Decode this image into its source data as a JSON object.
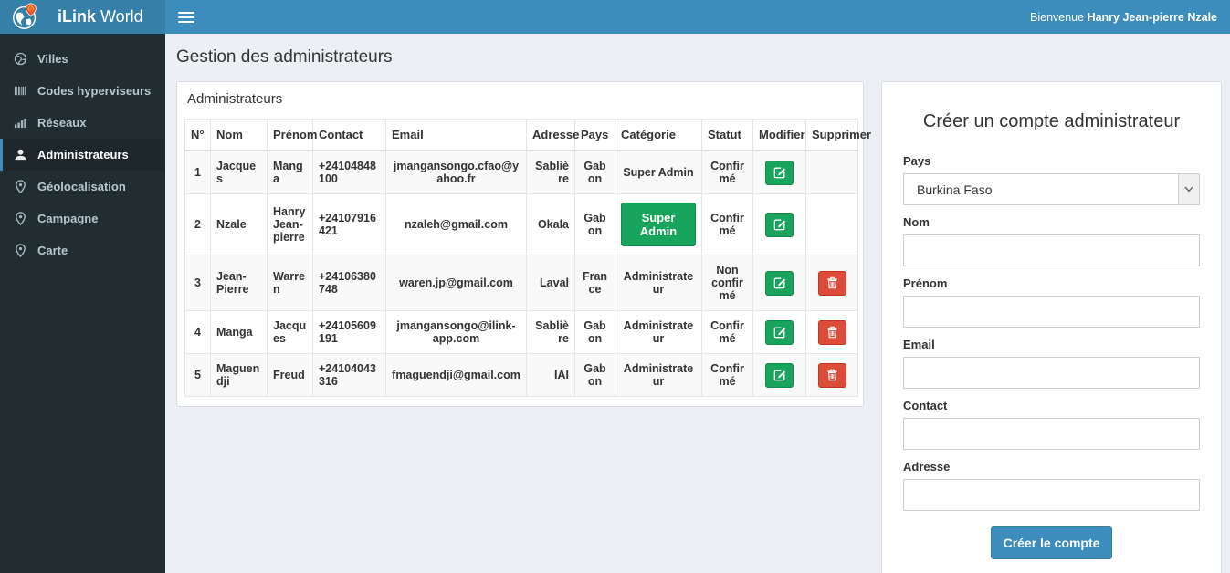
{
  "brand": {
    "title_bold": "iLink",
    "title_rest": " World"
  },
  "topbar": {
    "welcome_prefix": "Bienvenue ",
    "user_name": "Hanry Jean-pierre Nzale"
  },
  "sidebar": {
    "items": [
      {
        "label": "Villes",
        "icon": "globe-icon",
        "active": false
      },
      {
        "label": "Codes hyperviseurs",
        "icon": "barcode-icon",
        "active": false
      },
      {
        "label": "Réseaux",
        "icon": "signal-bars-icon",
        "active": false
      },
      {
        "label": "Administrateurs",
        "icon": "user-icon",
        "active": true
      },
      {
        "label": "Géolocalisation",
        "icon": "map-marker-icon",
        "active": false
      },
      {
        "label": "Campagne",
        "icon": "map-marker-icon",
        "active": false
      },
      {
        "label": "Carte",
        "icon": "map-marker-icon",
        "active": false
      }
    ]
  },
  "page": {
    "title": "Gestion des administrateurs"
  },
  "admin_panel": {
    "title": "Administrateurs",
    "table": {
      "headers": [
        "N°",
        "Nom",
        "Prénom",
        "Contact",
        "Email",
        "Adresse",
        "Pays",
        "Catégorie",
        "Statut",
        "Modifier",
        "Supprimer"
      ],
      "rows": [
        {
          "num": "1",
          "nom": "Jacques",
          "prenom": "Manga",
          "contact": "+24104848100",
          "email": "jmangansongo.cfao@yahoo.fr",
          "adresse": "Sablière",
          "pays": "Gabon",
          "categorie": "Super Admin",
          "categorie_style": "text",
          "statut": "Confirmé",
          "can_delete": false
        },
        {
          "num": "2",
          "nom": "Nzale",
          "prenom": "Hanry Jean-pierre",
          "contact": "+24107916421",
          "email": "nzaleh@gmail.com",
          "adresse": "Okala",
          "pays": "Gabon",
          "categorie": "Super Admin",
          "categorie_style": "button",
          "statut": "Confirmé",
          "can_delete": false
        },
        {
          "num": "3",
          "nom": "Jean-Pierre",
          "prenom": "Warren",
          "contact": "+24106380748",
          "email": "waren.jp@gmail.com",
          "adresse": "Laval",
          "pays": "France",
          "categorie": "Administrateur",
          "categorie_style": "text",
          "statut": "Non confirmé",
          "can_delete": true
        },
        {
          "num": "4",
          "nom": "Manga",
          "prenom": "Jacques",
          "contact": "+24105609191",
          "email": "jmangansongo@ilink-app.com",
          "adresse": "Sablière",
          "pays": "Gabon",
          "categorie": "Administrateur",
          "categorie_style": "text",
          "statut": "Confirmé",
          "can_delete": true
        },
        {
          "num": "5",
          "nom": "Maguendji",
          "prenom": "Freud",
          "contact": "+24104043316",
          "email": "fmaguendji@gmail.com",
          "adresse": "IAI",
          "pays": "Gabon",
          "categorie": "Administrateur",
          "categorie_style": "text",
          "statut": "Confirmé",
          "can_delete": true
        }
      ]
    }
  },
  "form_panel": {
    "title": "Créer un compte administrateur",
    "fields": {
      "pays": {
        "label": "Pays",
        "value": "Burkina Faso"
      },
      "nom": {
        "label": "Nom",
        "value": ""
      },
      "prenom": {
        "label": "Prénom",
        "value": ""
      },
      "email": {
        "label": "Email",
        "value": ""
      },
      "contact": {
        "label": "Contact",
        "value": ""
      },
      "adresse": {
        "label": "Adresse",
        "value": ""
      }
    },
    "submit_label": "Créer le compte"
  },
  "colors": {
    "navbar": "#3c8dbc",
    "brand_bg": "#367fa9",
    "sidebar_bg": "#222d32",
    "sidebar_active_bg": "#1e282c",
    "content_bg": "#ecf0f5",
    "success_green": "#18a45c",
    "danger_red": "#dd4b39",
    "primary_blue": "#3c8dbc",
    "row_stripe": "#f9f9f9"
  }
}
